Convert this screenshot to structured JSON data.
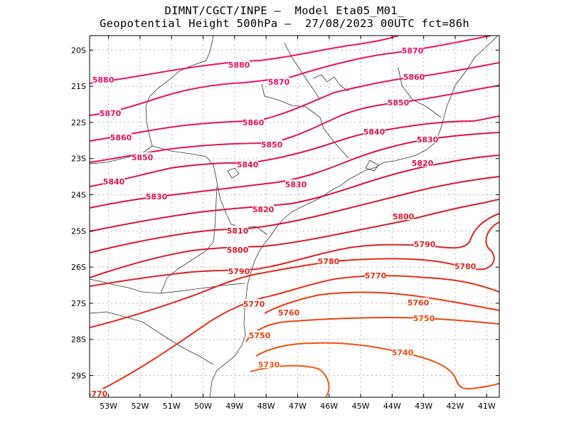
{
  "title": {
    "line1": "DIMNT/CGCT/INPE –  Model Eta05_M01_",
    "line2": "Geopotential Height 500hPa –  27/08/2023 00UTC fct=86h"
  },
  "chart_data": {
    "type": "contour_map",
    "variable": "Geopotential Height 500hPa",
    "units": "gpm",
    "lon_range": [
      -53.6,
      -40.6
    ],
    "lat_range": [
      -29.6,
      -19.6
    ],
    "x_ticks": [
      "53W",
      "52W",
      "51W",
      "50W",
      "49W",
      "48W",
      "47W",
      "46W",
      "45W",
      "44W",
      "43W",
      "42W",
      "41W"
    ],
    "y_ticks": [
      "20S",
      "21S",
      "22S",
      "23S",
      "24S",
      "25S",
      "26S",
      "27S",
      "28S",
      "29S"
    ],
    "grid": true,
    "contours": [
      {
        "value": 5880,
        "label": "5880",
        "color": "#ee1166"
      },
      {
        "value": 5870,
        "label": "5870",
        "color": "#ee1166"
      },
      {
        "value": 5860,
        "label": "5860",
        "color": "#e8115c"
      },
      {
        "value": 5850,
        "label": "5850",
        "color": "#e51156"
      },
      {
        "value": 5840,
        "label": "5840",
        "color": "#e3114c"
      },
      {
        "value": 5830,
        "label": "5830",
        "color": "#e01146"
      },
      {
        "value": 5820,
        "label": "5820",
        "color": "#dd113c"
      },
      {
        "value": 5810,
        "label": "5810",
        "color": "#db1432"
      },
      {
        "value": 5800,
        "label": "5800",
        "color": "#dd1a28"
      },
      {
        "value": 5790,
        "label": "5790",
        "color": "#e02020"
      },
      {
        "value": 5780,
        "label": "5780",
        "color": "#e2281a"
      },
      {
        "value": 5770,
        "label": "5770",
        "color": "#e63016"
      },
      {
        "value": 5760,
        "label": "5760",
        "color": "#ea3a12"
      },
      {
        "value": 5750,
        "label": "5750",
        "color": "#ee4410"
      },
      {
        "value": 5740,
        "label": "5740",
        "color": "#f24e10"
      },
      {
        "value": 5730,
        "label": "5730",
        "color": "#f55810"
      }
    ]
  }
}
